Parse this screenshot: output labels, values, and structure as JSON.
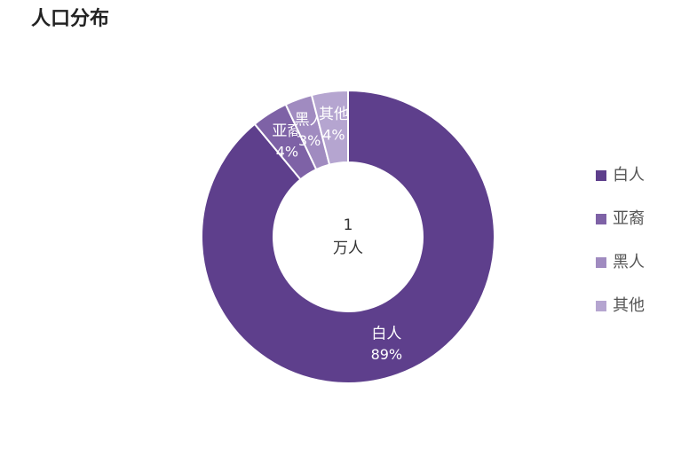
{
  "chart_data": {
    "type": "donut",
    "title": "人口分布",
    "categories": [
      "白人",
      "亚裔",
      "黑人",
      "其他"
    ],
    "values": [
      89,
      4,
      3,
      4
    ],
    "value_labels": [
      "89%",
      "4%",
      "3%",
      "4%"
    ],
    "colors": [
      "#5e3f8c",
      "#7e62a6",
      "#a08bc0",
      "#b5a5d0"
    ],
    "center_value": 1,
    "center_label": "万人",
    "legend": "right"
  }
}
